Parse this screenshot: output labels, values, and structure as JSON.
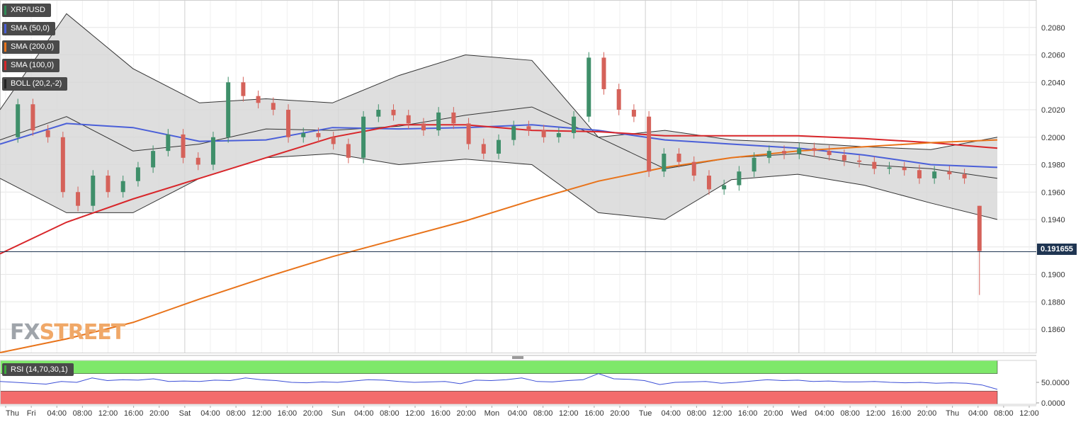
{
  "legend": [
    {
      "label": "XRP/USD",
      "color": "#2e8b57"
    },
    {
      "label": "SMA (50,0)",
      "color": "#4a5fd8"
    },
    {
      "label": "SMA (200,0)",
      "color": "#e8731a"
    },
    {
      "label": "SMA (100,0)",
      "color": "#d8262a"
    },
    {
      "label": "BOLL (20,2,-2)",
      "color": "#222222"
    }
  ],
  "rsi_label": "RSI (14,70,30,1)",
  "current_price": "0.191655",
  "logo": {
    "fx": "FX",
    "street": "STREET"
  },
  "colors": {
    "up": "#3f8f6a",
    "down": "#d5625a",
    "sma50": "#4a5fd8",
    "sma100": "#d8262a",
    "sma200": "#e8731a",
    "boll": "#333333",
    "rsi": "#3c4fd6"
  },
  "chart_data": {
    "type": "candlestick",
    "ylim": [
      0.1843,
      0.21
    ],
    "y_ticks": [
      "0.2080",
      "0.2060",
      "0.2040",
      "0.2020",
      "0.2000",
      "0.1980",
      "0.1960",
      "0.1940",
      "0.1920",
      "0.1900",
      "0.1880",
      "0.1860"
    ],
    "x_ticks": [
      "Thu",
      "Fri",
      "04:00",
      "08:00",
      "12:00",
      "16:00",
      "20:00",
      "Sat",
      "04:00",
      "08:00",
      "12:00",
      "16:00",
      "20:00",
      "Sun",
      "04:00",
      "08:00",
      "12:00",
      "16:00",
      "20:00",
      "Mon",
      "04:00",
      "08:00",
      "12:00",
      "16:00",
      "20:00",
      "Tue",
      "04:00",
      "08:00",
      "12:00",
      "16:00",
      "20:00",
      "Wed",
      "04:00",
      "08:00",
      "12:00",
      "16:00",
      "20:00",
      "Thu",
      "04:00",
      "08:00",
      "12:00"
    ],
    "close_series": [
      0.2,
      0.2024,
      0.2005,
      0.2,
      0.196,
      0.195,
      0.1972,
      0.196,
      0.1968,
      0.1978,
      0.199,
      0.2002,
      0.1985,
      0.198,
      0.2,
      0.204,
      0.203,
      0.2025,
      0.202,
      0.2,
      0.2003,
      0.2,
      0.1995,
      0.1985,
      0.2015,
      0.202,
      0.2016,
      0.201,
      0.2005,
      0.2018,
      0.201,
      0.1995,
      0.1988,
      0.1998,
      0.2008,
      0.2005,
      0.2,
      0.2003,
      0.2015,
      0.2058,
      0.2035,
      0.202,
      0.2015,
      0.1975,
      0.1988,
      0.1982,
      0.1972,
      0.1962,
      0.1965,
      0.1975,
      0.1985,
      0.199,
      0.1988,
      0.1992,
      0.199,
      0.1987,
      0.1983,
      0.1982,
      0.1977,
      0.1978,
      0.1976,
      0.197,
      0.1975,
      0.1973,
      0.197,
      0.1916
    ],
    "last_candle": {
      "open": 0.195,
      "high": 0.195,
      "low": 0.1885,
      "close": 0.1917
    },
    "series": [
      {
        "name": "SMA (50,0)",
        "values": [
          0.1995,
          0.201,
          0.2007,
          0.1997,
          0.1998,
          0.2007,
          0.2006,
          0.2007,
          0.2009,
          0.2005,
          0.1998,
          0.1995,
          0.1992,
          0.1987,
          0.198,
          0.1978
        ]
      },
      {
        "name": "SMA (100,0)",
        "values": [
          0.1915,
          0.1938,
          0.1955,
          0.197,
          0.1985,
          0.2,
          0.2009,
          0.2009,
          0.2005,
          0.2004,
          0.2001,
          0.2001,
          0.2001,
          0.1999,
          0.1996,
          0.1992
        ]
      },
      {
        "name": "SMA (200,0)",
        "values": [
          0.1843,
          0.1853,
          0.1865,
          0.1882,
          0.1898,
          0.1913,
          0.1926,
          0.1939,
          0.1954,
          0.1968,
          0.1978,
          0.1985,
          0.199,
          0.1993,
          0.1996,
          0.1998
        ]
      },
      {
        "name": "BOLL upper",
        "values": [
          0.202,
          0.209,
          0.205,
          0.2025,
          0.2028,
          0.2025,
          0.2045,
          0.206,
          0.2056,
          0.2,
          0.2005,
          0.1998,
          0.1996,
          0.1993,
          0.1991,
          0.2
        ]
      },
      {
        "name": "BOLL middle",
        "values": [
          0.1998,
          0.2015,
          0.199,
          0.1995,
          0.2006,
          0.2005,
          0.2008,
          0.2016,
          0.2022,
          0.2,
          0.1977,
          0.1985,
          0.1988,
          0.198,
          0.1977,
          0.197
        ]
      },
      {
        "name": "BOLL lower",
        "values": [
          0.197,
          0.1945,
          0.1945,
          0.197,
          0.1985,
          0.1988,
          0.198,
          0.1984,
          0.198,
          0.1945,
          0.194,
          0.1969,
          0.1973,
          0.1965,
          0.1952,
          0.194
        ]
      }
    ],
    "rsi": {
      "ticks": [
        "50.0000",
        "0.0000"
      ],
      "overbought": 70,
      "oversold": 30,
      "values": [
        52,
        50,
        48,
        46,
        52,
        50,
        60,
        54,
        56,
        55,
        58,
        52,
        53,
        52,
        55,
        54,
        60,
        56,
        54,
        50,
        49,
        51,
        50,
        53,
        56,
        55,
        52,
        50,
        51,
        52,
        47,
        55,
        54,
        56,
        60,
        52,
        51,
        54,
        56,
        70,
        58,
        57,
        54,
        45,
        50,
        51,
        52,
        48,
        50,
        53,
        56,
        54,
        55,
        52,
        53,
        51,
        51,
        52,
        50,
        49,
        50,
        48,
        49,
        48,
        44,
        34
      ]
    }
  }
}
